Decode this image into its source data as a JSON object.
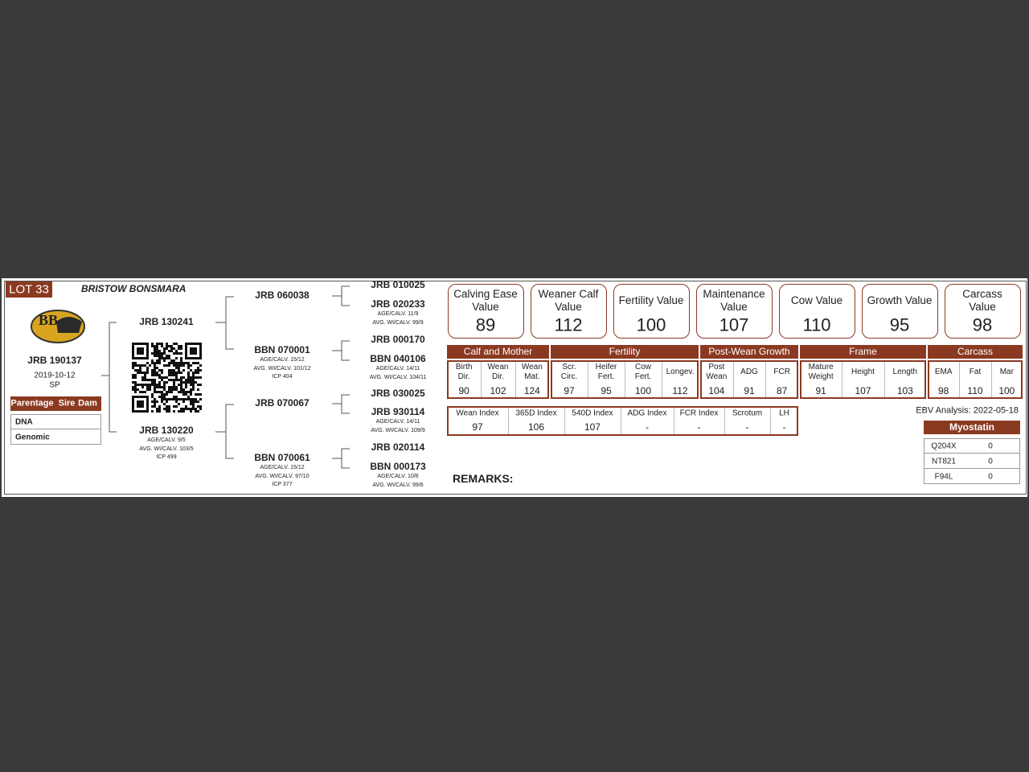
{
  "lot": "LOT 33",
  "breeder": "BRISTOW BONSMARA",
  "logo_text": "BB",
  "animal": {
    "id": "JRB 190137",
    "birth_date": "2019-10-12",
    "code": "SP"
  },
  "parentage": {
    "header": [
      "Parentage",
      "Sire",
      "Dam"
    ],
    "rows": [
      "DNA",
      "Genomic"
    ]
  },
  "pedigree": {
    "sire": {
      "id": "JRB 130241"
    },
    "dam": {
      "id": "JRB 130220",
      "details": [
        "AGE/CALV. 9/5",
        "AVG. WI/CALV. 103/5",
        "ICP 499"
      ]
    },
    "grandparents": [
      {
        "id": "JRB 060038"
      },
      {
        "id": "BBN 070001",
        "details": [
          "AGE/CALV. 15/12",
          "AVG. WI/CALV. 101/12",
          "ICP 404"
        ]
      },
      {
        "id": "JRB 070067"
      },
      {
        "id": "BBN 070061",
        "details": [
          "AGE/CALV. 15/12",
          "AVG. WI/CALV. 97/10",
          "ICP 377"
        ]
      }
    ],
    "great_grandparents": [
      {
        "id": "JRB 010025"
      },
      {
        "id": "JRB 020233",
        "details": [
          "AGE/CALV. 11/9",
          "AVG. WI/CALV. 99/9"
        ]
      },
      {
        "id": "JRB 000170"
      },
      {
        "id": "BBN 040106",
        "details": [
          "AGE/CALV. 14/11",
          "AVG. WI/CALV. 104/11"
        ]
      },
      {
        "id": "JRB 030025"
      },
      {
        "id": "JRB 930114",
        "details": [
          "AGE/CALV. 14/11",
          "AVG. WI/CALV. 109/9"
        ]
      },
      {
        "id": "JRB 020114"
      },
      {
        "id": "BBN 000173",
        "details": [
          "AGE/CALV. 10/6",
          "AVG. WI/CALV. 99/6"
        ]
      }
    ]
  },
  "value_cards": [
    {
      "label": "Calving Ease Value",
      "value": 89
    },
    {
      "label": "Weaner Calf Value",
      "value": 112
    },
    {
      "label": "Fertility Value",
      "value": 100
    },
    {
      "label": "Maintenance Value",
      "value": 107
    },
    {
      "label": "Cow Value",
      "value": 110
    },
    {
      "label": "Growth Value",
      "value": 95
    },
    {
      "label": "Carcass Value",
      "value": 98
    }
  ],
  "ebv_groups": [
    {
      "title": "Calf and Mother",
      "traits": [
        {
          "label": "Birth Dir.",
          "value": 90
        },
        {
          "label": "Wean Dir.",
          "value": 102
        },
        {
          "label": "Wean Mat.",
          "value": 124
        }
      ]
    },
    {
      "title": "Fertility",
      "traits": [
        {
          "label": "Scr. Circ.",
          "value": 97
        },
        {
          "label": "Heifer Fert.",
          "value": 95
        },
        {
          "label": "Cow Fert.",
          "value": 100
        },
        {
          "label": "Longev.",
          "value": 112
        }
      ]
    },
    {
      "title": "Post-Wean Growth",
      "traits": [
        {
          "label": "Post Wean",
          "value": 104
        },
        {
          "label": "ADG",
          "value": 91
        },
        {
          "label": "FCR",
          "value": 87
        }
      ]
    },
    {
      "title": "Frame",
      "traits": [
        {
          "label": "Mature Weight",
          "value": 91
        },
        {
          "label": "Height",
          "value": 107
        },
        {
          "label": "Length",
          "value": 103
        }
      ]
    },
    {
      "title": "Carcass",
      "traits": [
        {
          "label": "EMA",
          "value": 98
        },
        {
          "label": "Fat",
          "value": 110
        },
        {
          "label": "Mar",
          "value": 100
        }
      ]
    }
  ],
  "indexes": [
    {
      "label": "Wean Index",
      "value": 97
    },
    {
      "label": "365D Index",
      "value": 106
    },
    {
      "label": "540D Index",
      "value": 107
    },
    {
      "label": "ADG Index",
      "value": "-"
    },
    {
      "label": "FCR Index",
      "value": "-"
    },
    {
      "label": "Scrotum",
      "value": "-"
    },
    {
      "label": "LH",
      "value": "-"
    }
  ],
  "ebv_date": "EBV Analysis: 2022-05-18",
  "myostatin": {
    "title": "Myostatin",
    "rows": [
      {
        "marker": "Q204X",
        "result": 0
      },
      {
        "marker": "NT821",
        "result": 0
      },
      {
        "marker": "F94L",
        "result": 0
      }
    ]
  },
  "remarks": "REMARKS:"
}
